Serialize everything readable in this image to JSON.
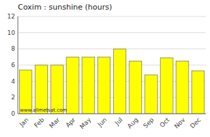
{
  "chart_data": {
    "type": "bar",
    "title": "Coxim : sunshine (hours)",
    "categories": [
      "Jan",
      "Feb",
      "Mar",
      "Apr",
      "May",
      "Jun",
      "Jul",
      "Aug",
      "Sep",
      "Oct",
      "Nov",
      "Dec"
    ],
    "values": [
      5.4,
      6.0,
      6.0,
      7.0,
      7.0,
      7.0,
      8.0,
      6.5,
      4.8,
      6.9,
      6.5,
      5.3
    ],
    "color": "#FFFF00",
    "ylim": [
      0,
      12
    ],
    "yticks": [
      0,
      2,
      4,
      6,
      8,
      10,
      12
    ],
    "grid": true,
    "annotation": "www.allmetsat.com"
  }
}
